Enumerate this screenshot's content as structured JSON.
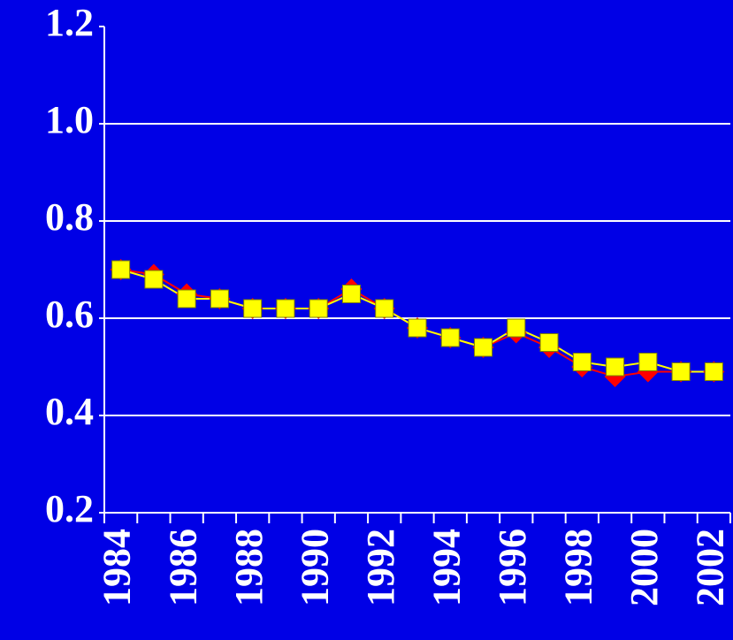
{
  "chart_data": {
    "type": "line",
    "categories": [
      "1984",
      null,
      "1986",
      null,
      "1988",
      null,
      "1990",
      null,
      "1992",
      null,
      "1994",
      null,
      "1996",
      null,
      "1998",
      null,
      "2000",
      null,
      "2002"
    ],
    "series": [
      {
        "color": "#ff0000",
        "marker": "diamond",
        "values": [
          0.7,
          0.69,
          0.65,
          0.64,
          0.62,
          0.62,
          0.62,
          0.66,
          0.62,
          0.58,
          0.56,
          0.54,
          0.57,
          0.54,
          0.5,
          0.48,
          0.49,
          0.49,
          0.49
        ]
      },
      {
        "color": "#ffff00",
        "marker": "square",
        "values": [
          0.7,
          0.68,
          0.64,
          0.64,
          0.62,
          0.62,
          0.62,
          0.65,
          0.62,
          0.58,
          0.56,
          0.54,
          0.58,
          0.55,
          0.51,
          0.5,
          0.51,
          0.49,
          0.49
        ]
      }
    ],
    "ylim": [
      0.2,
      1.2
    ],
    "yticks": [
      0.2,
      0.4,
      0.6,
      0.8,
      {
        "value": 1,
        "label": "1.0"
      },
      1.2
    ],
    "grid": true,
    "background": "#0000e6"
  }
}
